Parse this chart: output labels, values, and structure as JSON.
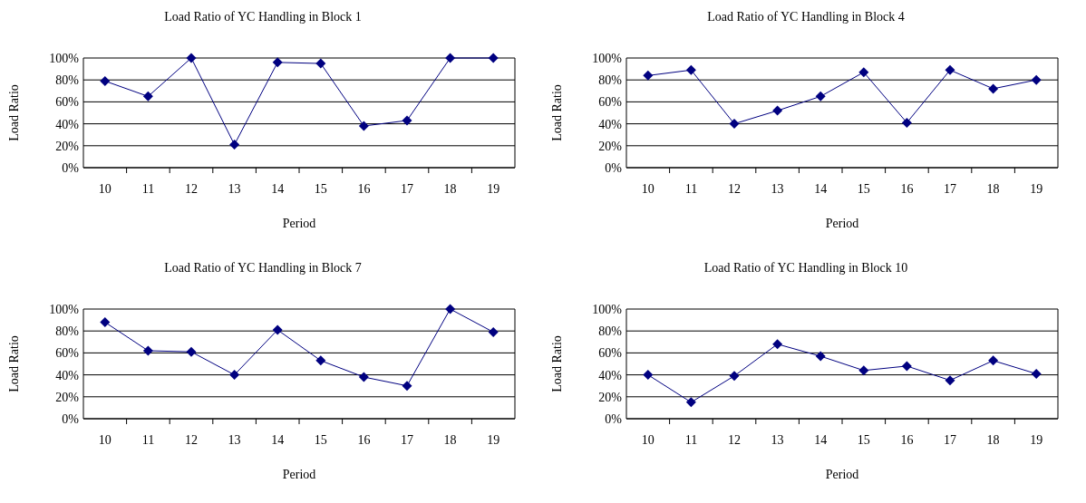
{
  "chart_data": [
    {
      "type": "line",
      "title": "Load Ratio of YC Handling in Block 1",
      "xlabel": "Period",
      "ylabel": "Load Ratio",
      "categories": [
        "10",
        "11",
        "12",
        "13",
        "14",
        "15",
        "16",
        "17",
        "18",
        "19"
      ],
      "series": [
        {
          "color": "#000080",
          "values": [
            79,
            65,
            100,
            21,
            96,
            95,
            38,
            43,
            100,
            100
          ]
        }
      ],
      "ylim": [
        0,
        100
      ],
      "yticks": [
        {
          "value": 0,
          "label": "0%"
        },
        {
          "value": 20,
          "label": "20%"
        },
        {
          "value": 40,
          "label": "40%"
        },
        {
          "value": 60,
          "label": "60%"
        },
        {
          "value": 80,
          "label": "80%"
        },
        {
          "value": 100,
          "label": "100%"
        }
      ],
      "grid": "y",
      "marker": "diamond"
    },
    {
      "type": "line",
      "title": "Load Ratio of YC Handling in Block 4",
      "xlabel": "Period",
      "ylabel": "Load Ratio",
      "categories": [
        "10",
        "11",
        "12",
        "13",
        "14",
        "15",
        "16",
        "17",
        "18",
        "19"
      ],
      "series": [
        {
          "color": "#000080",
          "values": [
            84,
            89,
            40,
            52,
            65,
            87,
            41,
            89,
            72,
            80
          ]
        }
      ],
      "ylim": [
        0,
        100
      ],
      "yticks": [
        {
          "value": 0,
          "label": "0%"
        },
        {
          "value": 20,
          "label": "20%"
        },
        {
          "value": 40,
          "label": "40%"
        },
        {
          "value": 60,
          "label": "60%"
        },
        {
          "value": 80,
          "label": "80%"
        },
        {
          "value": 100,
          "label": "100%"
        }
      ],
      "grid": "y",
      "marker": "diamond"
    },
    {
      "type": "line",
      "title": "Load Ratio of YC Handling in Block 7",
      "xlabel": "Period",
      "ylabel": "Load Ratio",
      "categories": [
        "10",
        "11",
        "12",
        "13",
        "14",
        "15",
        "16",
        "17",
        "18",
        "19"
      ],
      "series": [
        {
          "color": "#000080",
          "values": [
            88,
            62,
            61,
            40,
            81,
            53,
            38,
            30,
            100,
            79
          ]
        }
      ],
      "ylim": [
        0,
        100
      ],
      "yticks": [
        {
          "value": 0,
          "label": "0%"
        },
        {
          "value": 20,
          "label": "20%"
        },
        {
          "value": 40,
          "label": "40%"
        },
        {
          "value": 60,
          "label": "60%"
        },
        {
          "value": 80,
          "label": "80%"
        },
        {
          "value": 100,
          "label": "100%"
        }
      ],
      "grid": "y",
      "marker": "diamond"
    },
    {
      "type": "line",
      "title": "Load Ratio of YC Handling in Block 10",
      "xlabel": "Period",
      "ylabel": "Load Ratio",
      "categories": [
        "10",
        "11",
        "12",
        "13",
        "14",
        "15",
        "16",
        "17",
        "18",
        "19"
      ],
      "series": [
        {
          "color": "#000080",
          "values": [
            40,
            15,
            39,
            68,
            57,
            44,
            48,
            35,
            53,
            41
          ]
        }
      ],
      "ylim": [
        0,
        100
      ],
      "yticks": [
        {
          "value": 0,
          "label": "0%"
        },
        {
          "value": 20,
          "label": "20%"
        },
        {
          "value": 40,
          "label": "40%"
        },
        {
          "value": 60,
          "label": "60%"
        },
        {
          "value": 80,
          "label": "80%"
        },
        {
          "value": 100,
          "label": "100%"
        }
      ],
      "grid": "y",
      "marker": "diamond"
    }
  ]
}
